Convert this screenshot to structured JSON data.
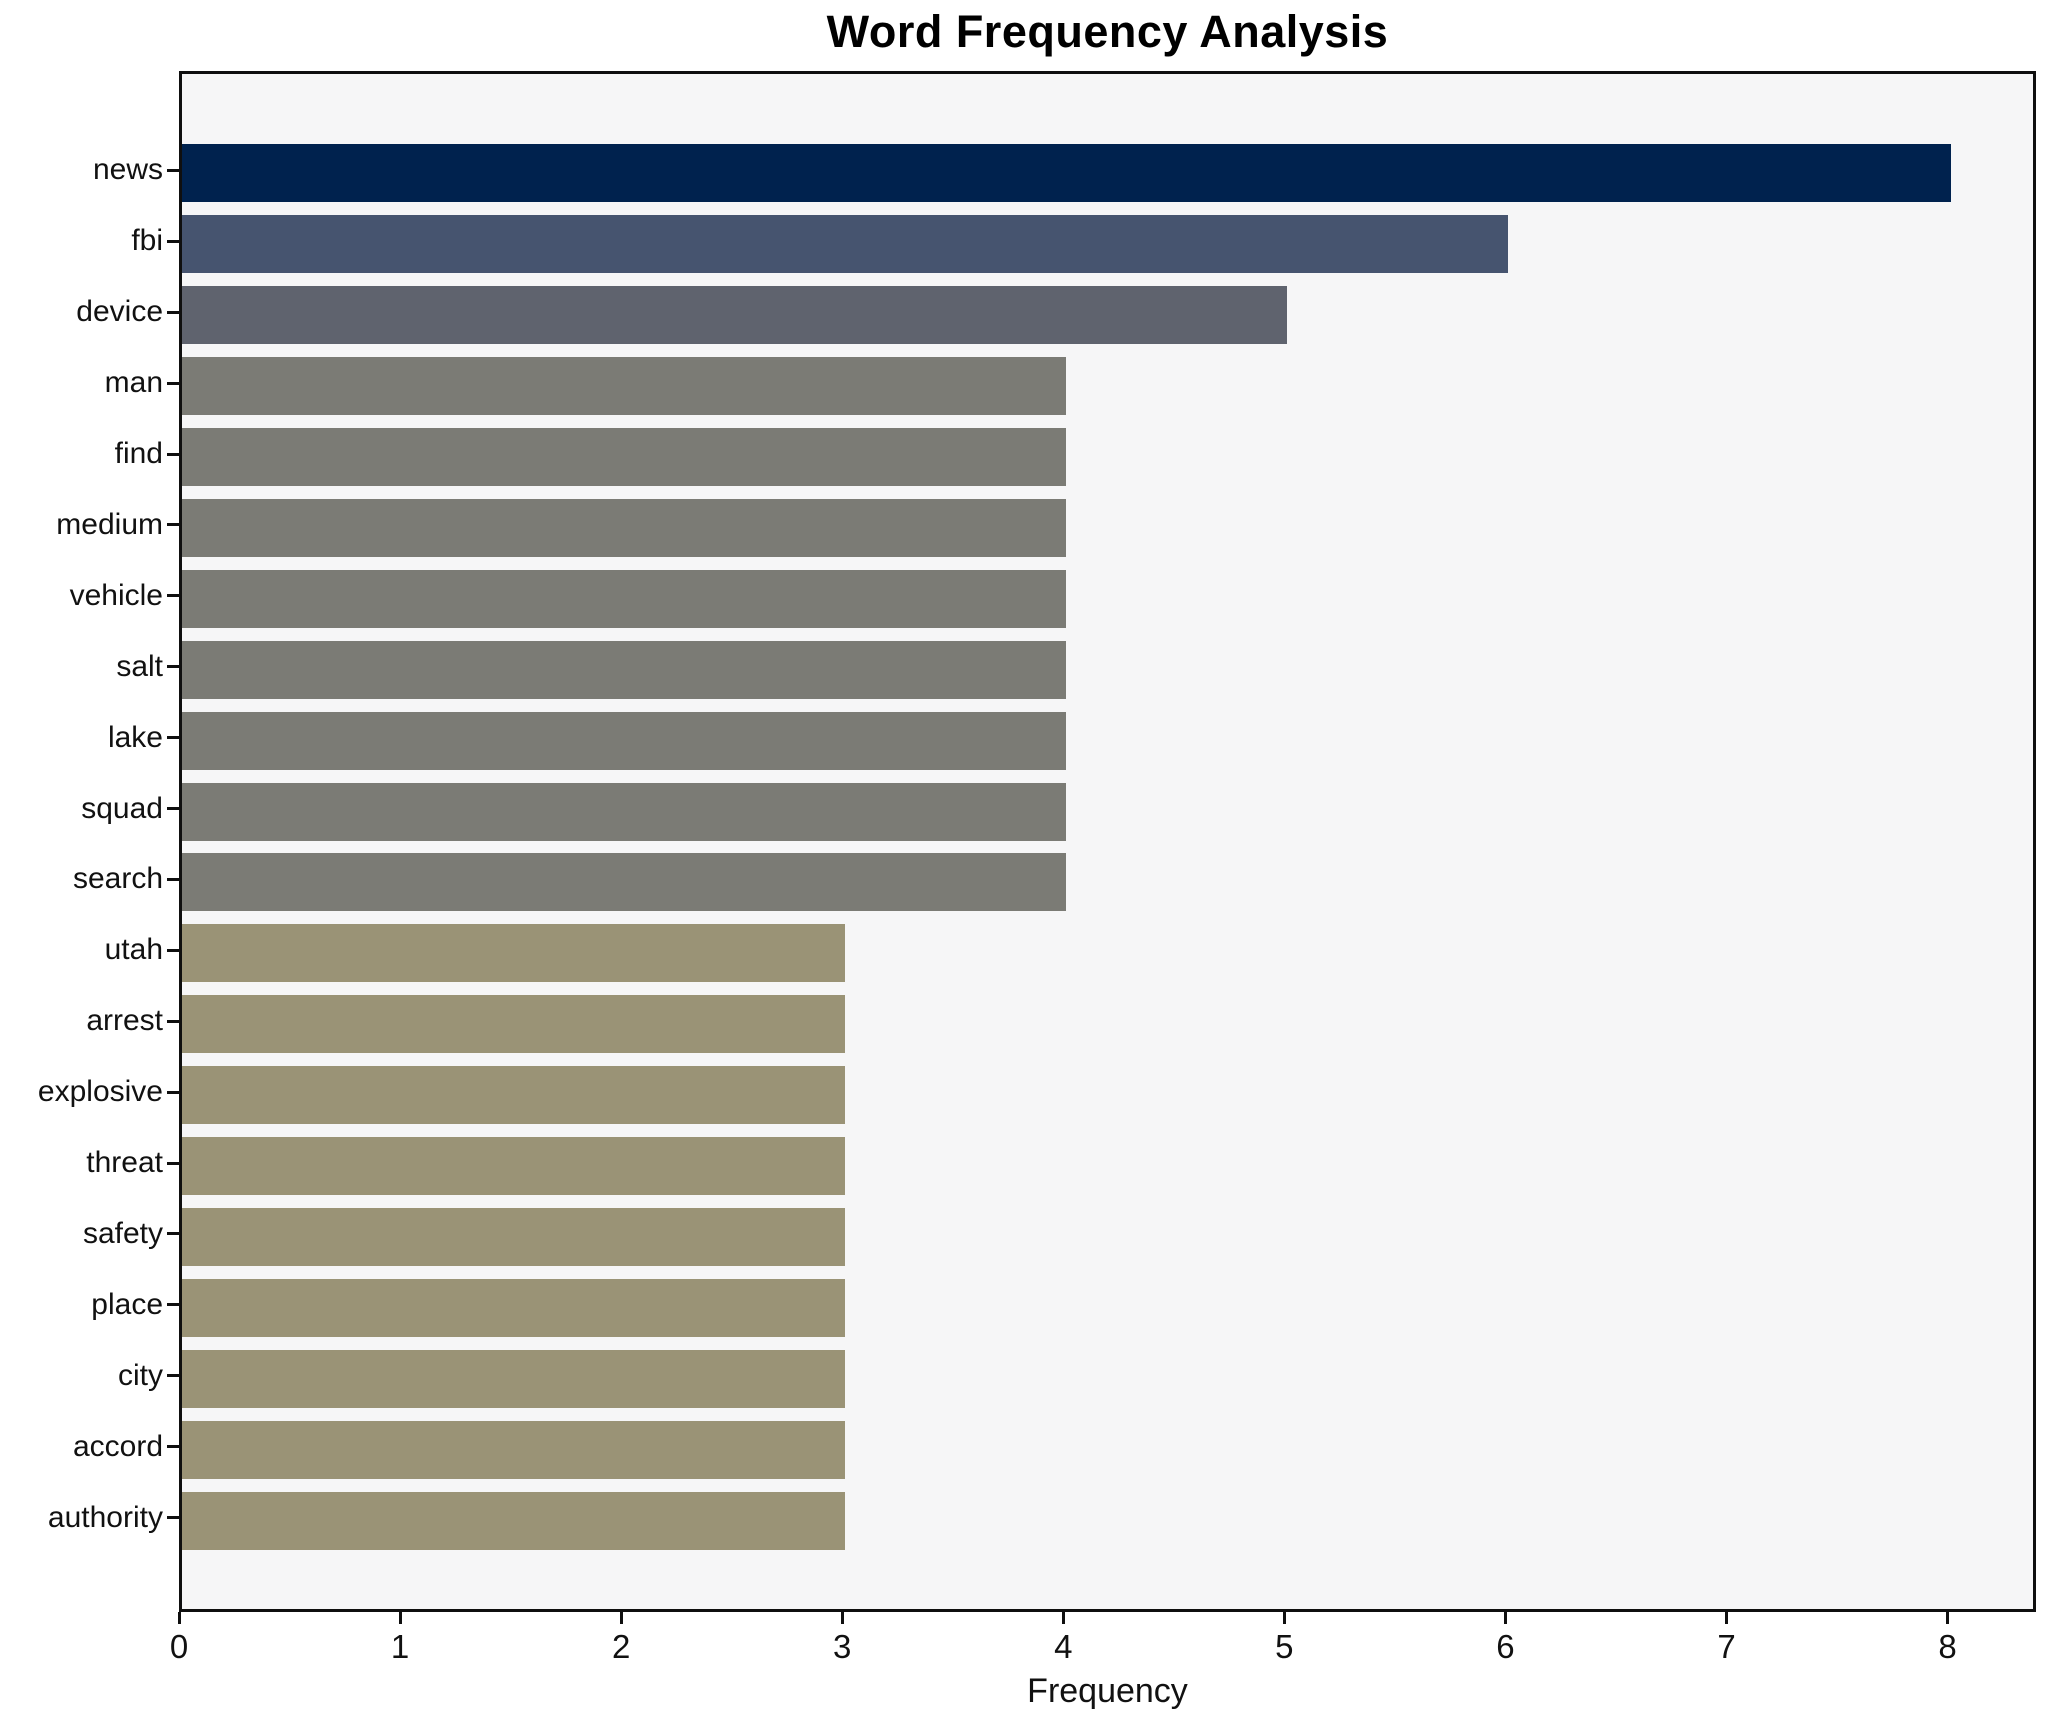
{
  "figure": {
    "title": "Word Frequency Analysis",
    "xlabel": "Frequency",
    "background_color": "#ffffff",
    "plot_background_color": "#f6f6f7",
    "spine_color": "#0f0f0f",
    "text_color": "#111111"
  },
  "chart_data": {
    "type": "bar",
    "orientation": "horizontal",
    "title": "Word Frequency Analysis",
    "xlabel": "Frequency",
    "ylabel": "",
    "categories": [
      "news",
      "fbi",
      "device",
      "man",
      "find",
      "medium",
      "vehicle",
      "salt",
      "lake",
      "squad",
      "search",
      "utah",
      "arrest",
      "explosive",
      "threat",
      "safety",
      "place",
      "city",
      "accord",
      "authority"
    ],
    "values": [
      8,
      6,
      5,
      4,
      4,
      4,
      4,
      4,
      4,
      4,
      4,
      3,
      3,
      3,
      3,
      3,
      3,
      3,
      3,
      3
    ],
    "bar_colors": [
      "#00224e",
      "#46546f",
      "#5f636e",
      "#7b7b75",
      "#7b7b75",
      "#7b7b75",
      "#7b7b75",
      "#7b7b75",
      "#7b7b75",
      "#7b7b75",
      "#7b7b75",
      "#9a9376",
      "#9a9376",
      "#9a9376",
      "#9a9376",
      "#9a9376",
      "#9a9376",
      "#9a9376",
      "#9a9376",
      "#9a9376"
    ],
    "xlim": [
      0,
      8.4
    ],
    "xticks": [
      0,
      1,
      2,
      3,
      4,
      5,
      6,
      7,
      8
    ],
    "grid": false,
    "legend": null
  }
}
